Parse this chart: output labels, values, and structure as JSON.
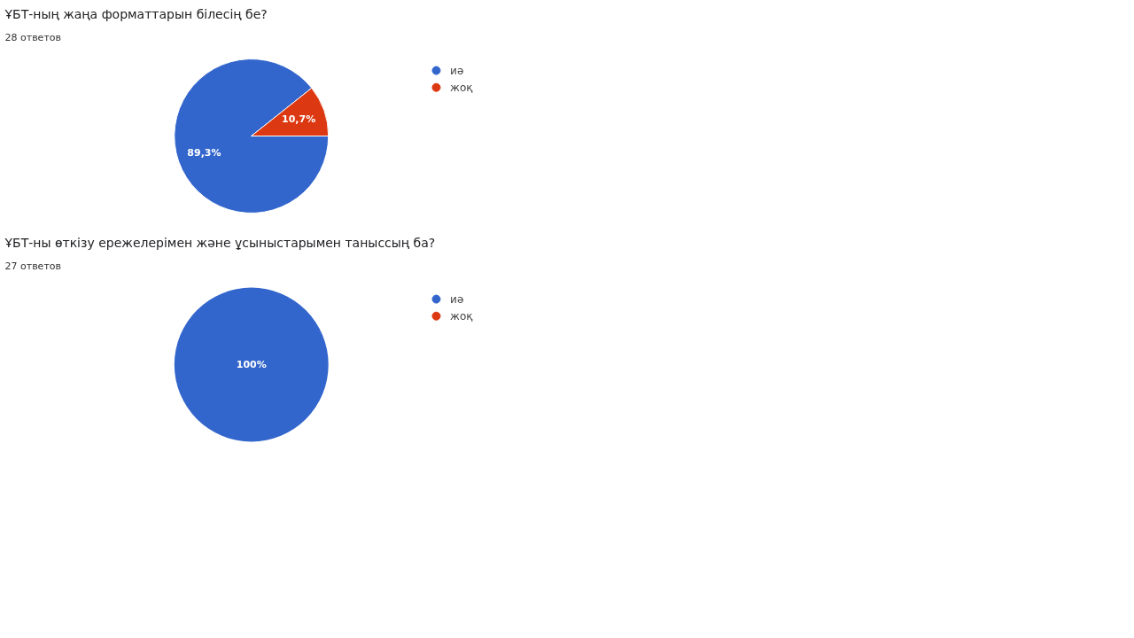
{
  "chart_data": [
    {
      "type": "pie",
      "title": "ҰБТ-ның жаңа форматтарын білесің бе?",
      "subtitle": "28 ответов",
      "categories": [
        "иә",
        "жоқ"
      ],
      "values": [
        89.3,
        10.7
      ],
      "colors": [
        "#3366cc",
        "#dc3912"
      ],
      "value_labels": [
        "89,3%",
        "10,7%"
      ],
      "legend": "top right"
    },
    {
      "type": "pie",
      "title": "ҰБТ-ны өткізу ережелерімен және ұсыныстарымен таныссың ба?",
      "subtitle": "27 ответов",
      "categories": [
        "иә",
        "жоқ"
      ],
      "values": [
        100,
        0
      ],
      "colors": [
        "#3366cc",
        "#dc3912"
      ],
      "value_labels": [
        "100%",
        null
      ],
      "legend": "top right"
    }
  ]
}
